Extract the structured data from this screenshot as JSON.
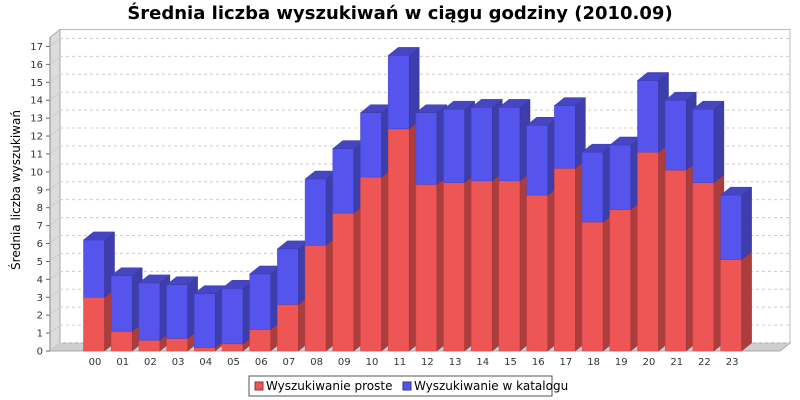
{
  "chart_data": {
    "type": "bar",
    "stacked": true,
    "three_d": true,
    "title": "Średnia liczba wyszukiwań w ciągu godziny (2010.09)",
    "xlabel": "",
    "ylabel": "Średnia liczba wyszukiwań",
    "ylim": [
      0,
      17.5
    ],
    "yticks": [
      0,
      1,
      2,
      3,
      4,
      5,
      6,
      7,
      8,
      9,
      10,
      11,
      12,
      13,
      14,
      15,
      16,
      17
    ],
    "grid": true,
    "legend_position": "bottom",
    "categories": [
      "00",
      "01",
      "02",
      "03",
      "04",
      "05",
      "06",
      "07",
      "08",
      "09",
      "10",
      "11",
      "12",
      "13",
      "14",
      "15",
      "16",
      "17",
      "18",
      "19",
      "20",
      "21",
      "22",
      "23"
    ],
    "series": [
      {
        "name": "Wyszukiwanie proste",
        "color": "#ee5555",
        "values": [
          3.0,
          1.1,
          0.6,
          0.7,
          0.2,
          0.4,
          1.2,
          2.6,
          5.9,
          7.7,
          9.7,
          12.4,
          9.3,
          9.4,
          9.5,
          9.5,
          8.7,
          10.2,
          7.2,
          7.9,
          11.1,
          10.1,
          9.4,
          5.1
        ]
      },
      {
        "name": "Wyszukiwanie w katalogu",
        "color": "#5555ee",
        "values": [
          3.2,
          3.1,
          3.2,
          3.0,
          3.0,
          3.1,
          3.1,
          3.1,
          3.7,
          3.6,
          3.6,
          4.1,
          4.0,
          4.1,
          4.1,
          4.1,
          3.9,
          3.5,
          3.9,
          3.6,
          4.0,
          3.9,
          4.1,
          3.6
        ]
      }
    ]
  }
}
